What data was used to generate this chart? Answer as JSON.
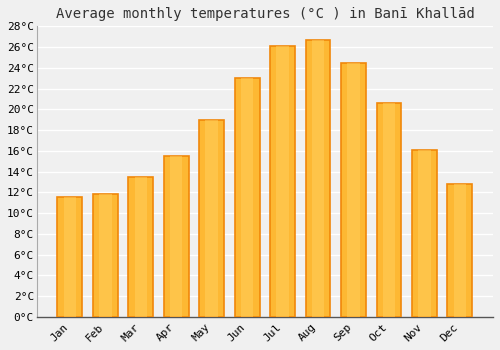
{
  "title": "Average monthly temperatures (°C ) in Banī Khallād",
  "months": [
    "Jan",
    "Feb",
    "Mar",
    "Apr",
    "May",
    "Jun",
    "Jul",
    "Aug",
    "Sep",
    "Oct",
    "Nov",
    "Dec"
  ],
  "temperatures": [
    11.5,
    11.8,
    13.5,
    15.5,
    19.0,
    23.0,
    26.1,
    26.7,
    24.5,
    20.6,
    16.1,
    12.8
  ],
  "bar_color_main": "#FDB833",
  "bar_color_edge": "#F0870A",
  "ylim": [
    0,
    28
  ],
  "yticks": [
    0,
    2,
    4,
    6,
    8,
    10,
    12,
    14,
    16,
    18,
    20,
    22,
    24,
    26,
    28
  ],
  "background_color": "#f0f0f0",
  "plot_bg_color": "#f0f0f0",
  "grid_color": "#ffffff",
  "title_fontsize": 10,
  "tick_fontsize": 8,
  "bar_width": 0.7,
  "spine_color": "#aaaaaa"
}
